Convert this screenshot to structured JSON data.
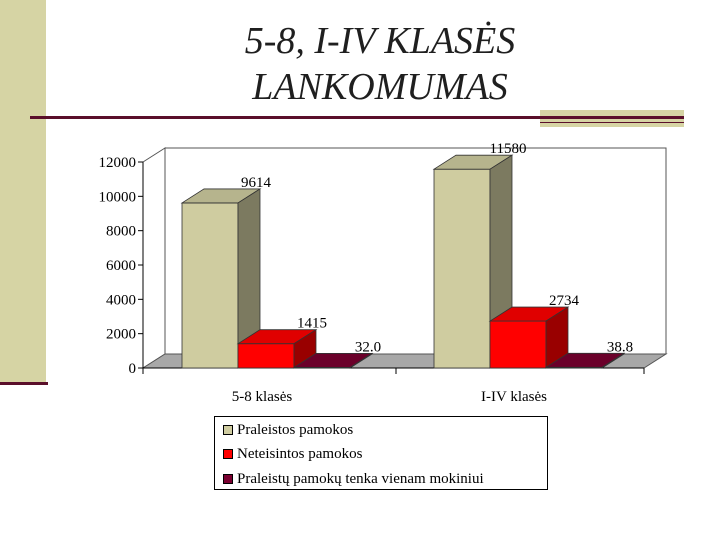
{
  "slide": {
    "title_line1": "5-8, I-IV KLASĖS",
    "title_line2": "LANKOMUMAS"
  },
  "colors": {
    "accent_band": "#d6d4a4",
    "rule": "#5a0f2a"
  },
  "chart_data": {
    "type": "bar",
    "title": "",
    "xlabel": "",
    "ylabel": "",
    "ylim": [
      0,
      12000
    ],
    "yticks": [
      0,
      2000,
      4000,
      6000,
      8000,
      10000,
      12000
    ],
    "grid": false,
    "legend_position": "bottom",
    "categories": [
      "5-8 klasės",
      "I-IV klasės"
    ],
    "series": [
      {
        "name": "Praleistos pamokos",
        "values": [
          9614,
          11580
        ],
        "labels": [
          "9614",
          "11580"
        ],
        "color": "#cfcca0"
      },
      {
        "name": "Neteisintos pamokos",
        "values": [
          1415,
          2734
        ],
        "labels": [
          "1415",
          "2734"
        ],
        "color": "#ff0000"
      },
      {
        "name": "Praleistų pamokų tenka vienam mokiniui",
        "values": [
          32.0,
          38.8
        ],
        "labels": [
          "32.0",
          "38.8"
        ],
        "color": "#7a0030"
      }
    ]
  }
}
